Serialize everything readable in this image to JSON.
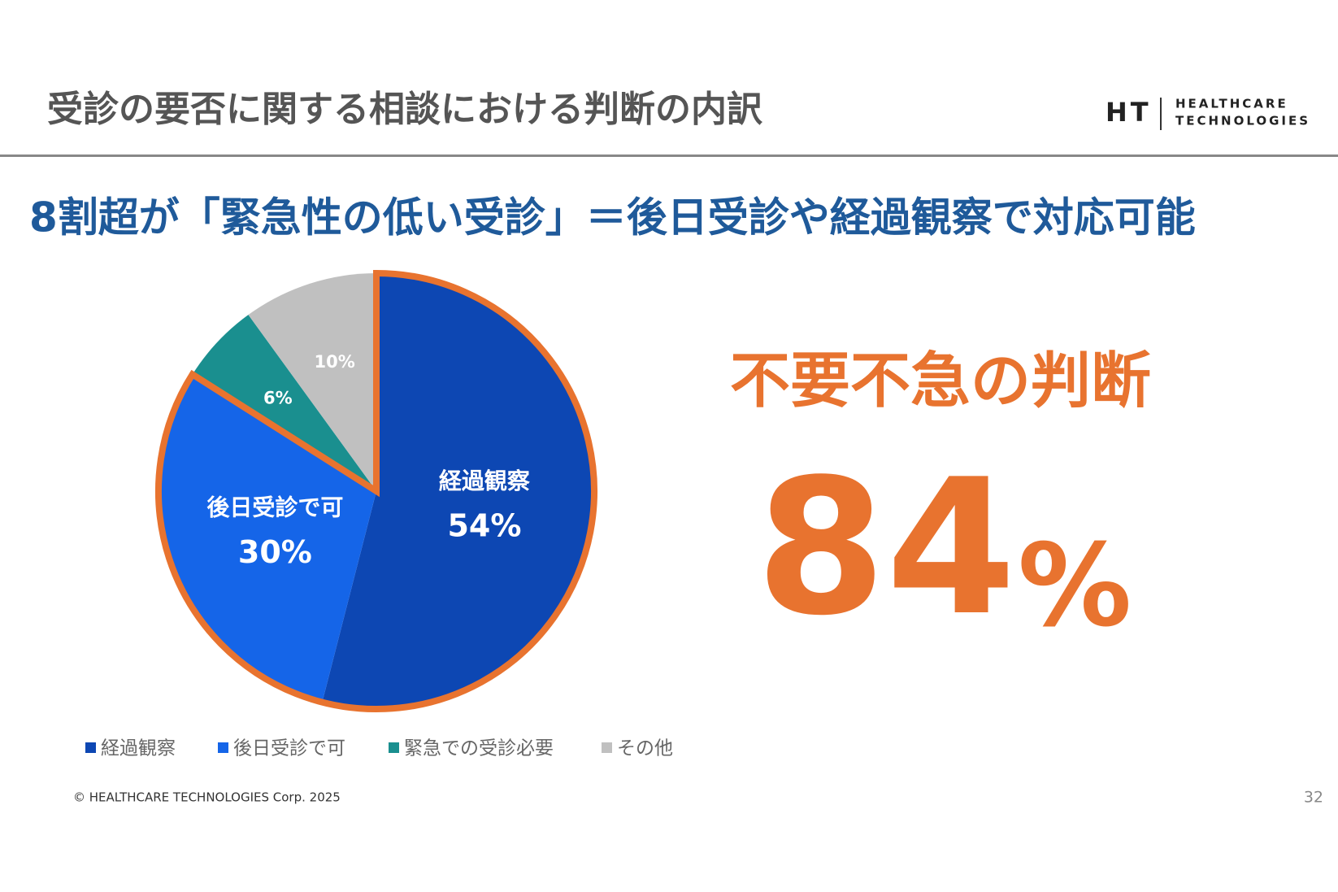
{
  "header": {
    "title": "受診の要否に関する相談における判断の内訳",
    "logo_mark": "HT",
    "logo_line1": "HEALTHCARE",
    "logo_line2": "TECHNOLOGIES"
  },
  "subtitle": "8割超が「緊急性の低い受診」＝後日受診や経過観察で対応可能",
  "chart_data": {
    "type": "pie",
    "categories": [
      "経過観察",
      "後日受診で可",
      "緊急での受診必要",
      "その他"
    ],
    "values": [
      54,
      30,
      6,
      10
    ],
    "value_labels": [
      "54%",
      "30%",
      "6%",
      "10%"
    ],
    "colors": [
      "#0d47b3",
      "#1565e8",
      "#1a8f8f",
      "#c0c0c0"
    ],
    "highlight_color": "#e8732f",
    "legend": "bottom"
  },
  "callout": {
    "label": "不要不急の判断",
    "number": 84,
    "unit": "%"
  },
  "footer": {
    "copyright": "© HEALTHCARE TECHNOLOGIES Corp. 2025",
    "page": "32"
  }
}
